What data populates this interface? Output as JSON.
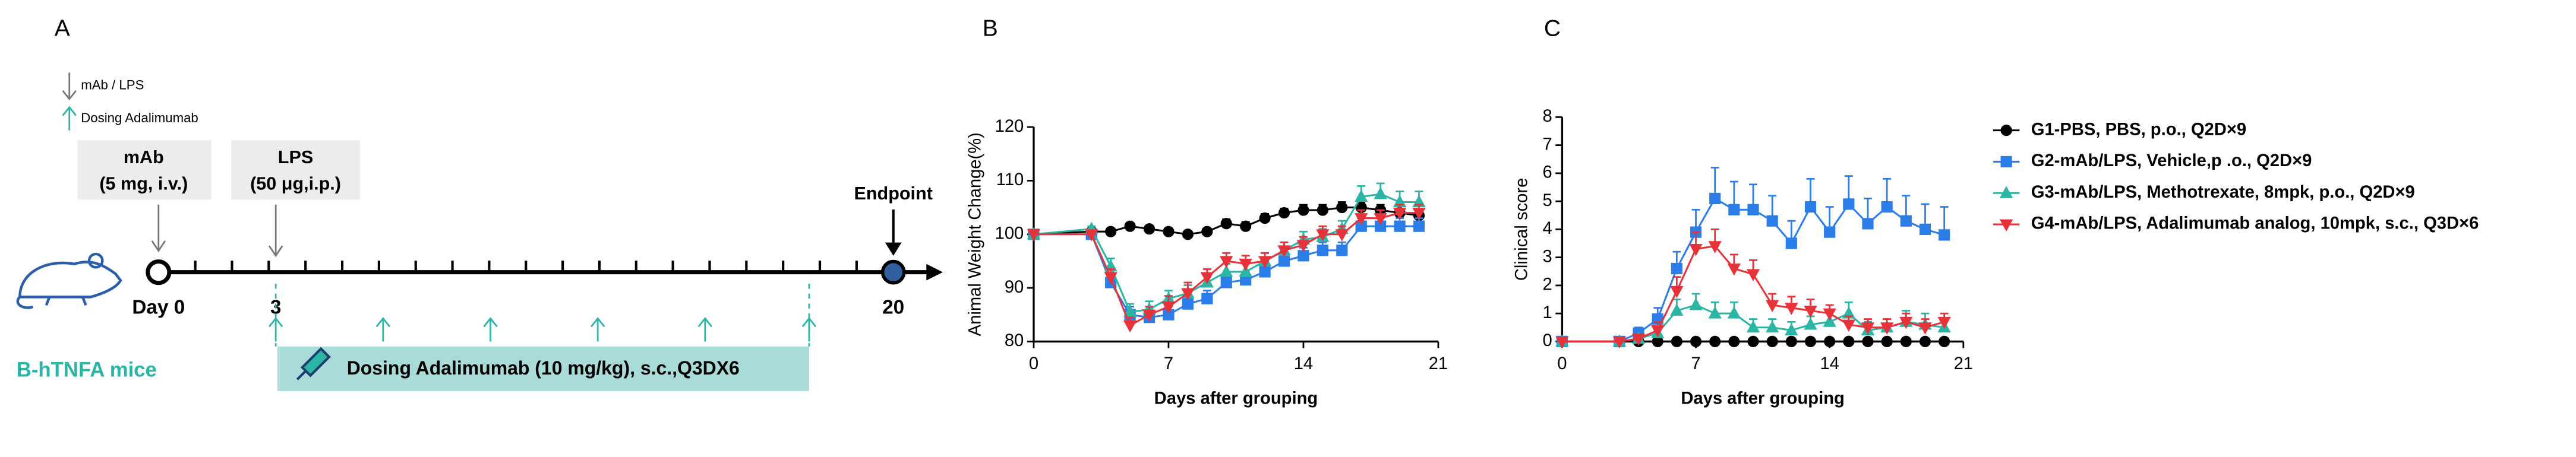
{
  "diagram": {
    "panel_label": "A",
    "legend": [
      "mAb / LPS",
      "Dosing Adalimumab"
    ],
    "mab_box": [
      "mAb",
      "(5 mg, i.v.)"
    ],
    "lps_box": [
      "LPS",
      "(50 μg,i.p.)"
    ],
    "endpoint": "Endpoint",
    "day_labels": [
      "Day 0",
      "3",
      "20"
    ],
    "mouse_label": "B-hTNFA mice",
    "dosing_bar": "Dosing Adalimumab (10 mg/kg), s.c.,Q3DX6"
  },
  "chart_data": [
    {
      "type": "line",
      "panel_label": "B",
      "xlabel": "Days after grouping",
      "ylabel": "Animal Weight Change(%)",
      "x": [
        0,
        3,
        4,
        5,
        6,
        7,
        8,
        9,
        10,
        11,
        12,
        13,
        14,
        15,
        16,
        17,
        18,
        19,
        20
      ],
      "xlim": [
        0,
        21
      ],
      "xticks": [
        0,
        7,
        14,
        21
      ],
      "ylim": [
        80,
        120
      ],
      "yticks": [
        80,
        90,
        100,
        110,
        120
      ],
      "series": [
        {
          "color": "#000000",
          "marker": "circle",
          "values": [
            100,
            100.5,
            100.5,
            101.5,
            101,
            100.5,
            100,
            100.5,
            102,
            101.5,
            103,
            104,
            104.5,
            104.5,
            105,
            105,
            104.5,
            104,
            103.5
          ],
          "errors": [
            0,
            0.5,
            0.5,
            0.5,
            0.5,
            0.5,
            0.5,
            0.5,
            0.8,
            0.8,
            0.8,
            0.8,
            1,
            1,
            1,
            1,
            1,
            1.2,
            1.2
          ]
        },
        {
          "color": "#2b7de9",
          "marker": "square",
          "values": [
            100,
            100,
            91,
            85,
            84.5,
            85,
            87,
            88,
            91,
            91.5,
            93,
            95,
            96,
            97,
            97,
            101.5,
            101.5,
            101.5,
            101.5
          ],
          "errors": [
            0,
            0.5,
            1.5,
            1.5,
            1.5,
            1.5,
            1.5,
            1.5,
            1.5,
            1.5,
            1.5,
            1.5,
            1.5,
            1.5,
            1.5,
            1.5,
            1.5,
            1.5,
            1.5
          ]
        },
        {
          "color": "#2bb5a5",
          "marker": "triangle-up",
          "values": [
            100,
            101,
            94,
            85.5,
            86,
            88,
            89,
            91,
            93,
            93,
            95,
            97,
            99,
            99.5,
            101,
            107,
            107.5,
            106,
            106
          ],
          "errors": [
            0,
            0.5,
            1.5,
            1.5,
            1.5,
            1.5,
            1.5,
            1.5,
            1.5,
            1.5,
            1.5,
            1.5,
            1.5,
            1.5,
            1.5,
            2,
            2,
            2,
            2
          ]
        },
        {
          "color": "#e8323a",
          "marker": "triangle-down",
          "values": [
            100,
            100,
            92,
            83,
            85,
            86.5,
            89,
            92,
            95,
            94.5,
            95,
            97,
            98,
            100,
            100,
            103,
            103,
            104,
            104
          ],
          "errors": [
            0,
            0.5,
            1.5,
            1.5,
            1.5,
            2,
            2,
            1.5,
            1.5,
            1.5,
            1.5,
            1.5,
            1.5,
            1.5,
            1.5,
            1.5,
            1.5,
            1.5,
            1.5
          ]
        }
      ]
    },
    {
      "type": "line",
      "panel_label": "C",
      "xlabel": "Days after grouping",
      "ylabel": "Clinical score",
      "x": [
        0,
        3,
        4,
        5,
        6,
        7,
        8,
        9,
        10,
        11,
        12,
        13,
        14,
        15,
        16,
        17,
        18,
        19,
        20
      ],
      "xlim": [
        0,
        21
      ],
      "xticks": [
        0,
        7,
        14,
        21
      ],
      "ylim": [
        0,
        8
      ],
      "yticks": [
        0,
        1,
        2,
        3,
        4,
        5,
        6,
        7,
        8
      ],
      "legend": "right",
      "series": [
        {
          "name": "G1-PBS, PBS, p.o., Q2D×9",
          "color": "#000000",
          "marker": "circle",
          "values": [
            0,
            0,
            0,
            0,
            0,
            0,
            0,
            0,
            0,
            0,
            0,
            0,
            0,
            0,
            0,
            0,
            0,
            0,
            0
          ],
          "errors": [
            0,
            0,
            0,
            0,
            0,
            0,
            0,
            0,
            0,
            0,
            0,
            0,
            0,
            0,
            0,
            0,
            0,
            0,
            0
          ]
        },
        {
          "name": "G2-mAb/LPS, Vehicle,p .o., Q2D×9",
          "color": "#2b7de9",
          "marker": "square",
          "values": [
            0,
            0,
            0.3,
            0.8,
            2.6,
            3.9,
            5.1,
            4.7,
            4.7,
            4.3,
            3.5,
            4.8,
            3.9,
            4.9,
            4.2,
            4.8,
            4.3,
            4.0,
            3.8
          ],
          "errors": [
            0,
            0,
            0.2,
            0.4,
            0.6,
            0.8,
            1.1,
            1.0,
            0.9,
            0.9,
            0.8,
            1.0,
            0.9,
            1.0,
            0.9,
            1.0,
            0.9,
            0.9,
            1.0
          ]
        },
        {
          "name": "G3-mAb/LPS, Methotrexate, 8mpk, p.o., Q2D×9",
          "color": "#2bb5a5",
          "marker": "triangle-up",
          "values": [
            0,
            0,
            0.1,
            0.3,
            1.1,
            1.3,
            1.0,
            1.0,
            0.5,
            0.5,
            0.4,
            0.6,
            0.7,
            1.0,
            0.4,
            0.5,
            0.7,
            0.6,
            0.5
          ],
          "errors": [
            0,
            0,
            0.1,
            0.2,
            0.4,
            0.4,
            0.4,
            0.4,
            0.3,
            0.3,
            0.3,
            0.3,
            0.4,
            0.4,
            0.3,
            0.3,
            0.4,
            0.4,
            0.3
          ]
        },
        {
          "name": "G4-mAb/LPS, Adalimumab analog, 10mpk, s.c., Q3D×6",
          "color": "#e8323a",
          "marker": "triangle-down",
          "values": [
            0,
            0,
            0.1,
            0.4,
            1.8,
            3.3,
            3.4,
            2.6,
            2.4,
            1.3,
            1.2,
            1.1,
            1.0,
            0.6,
            0.5,
            0.5,
            0.7,
            0.5,
            0.7
          ],
          "errors": [
            0,
            0,
            0.1,
            0.3,
            0.5,
            0.6,
            0.6,
            0.5,
            0.5,
            0.4,
            0.4,
            0.4,
            0.3,
            0.3,
            0.3,
            0.3,
            0.3,
            0.3,
            0.3
          ]
        }
      ]
    }
  ]
}
